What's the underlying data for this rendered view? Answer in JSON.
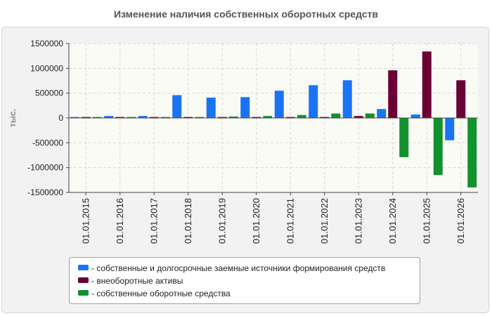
{
  "chart_data": {
    "type": "bar",
    "title": "Изменение наличия собственных оборотных средств",
    "ylabel": "тыс.",
    "xlabel": "",
    "ylim": [
      -1500000,
      1500000
    ],
    "yticks": [
      1500000,
      1000000,
      500000,
      0,
      -500000,
      -1000000,
      -1500000
    ],
    "ytick_labels": [
      "1500000",
      "1000000",
      "500000",
      "0",
      "-500000",
      "-1000000",
      "-1500000"
    ],
    "categories": [
      "01.01.2015",
      "01.01.2016",
      "01.01.2017",
      "01.01.2018",
      "01.01.2019",
      "01.01.2020",
      "01.01.2021",
      "01.01.2022",
      "01.01.2023",
      "01.01.2024",
      "01.01.2025",
      "01.01.2026"
    ],
    "series": [
      {
        "name": "- собственные и долгосрочные заемные источники формирования средств",
        "color": "#1a73f5",
        "values": [
          20000,
          40000,
          40000,
          460000,
          410000,
          420000,
          550000,
          660000,
          760000,
          180000,
          70000,
          -450000
        ]
      },
      {
        "name": "- внеоборотные активы",
        "color": "#6b0033",
        "values": [
          20000,
          20000,
          20000,
          20000,
          20000,
          20000,
          20000,
          20000,
          40000,
          960000,
          1340000,
          760000
        ]
      },
      {
        "name": "- собственные оборотные средства",
        "color": "#12922f",
        "values": [
          20000,
          20000,
          20000,
          20000,
          30000,
          40000,
          60000,
          90000,
          90000,
          -790000,
          -1150000,
          -1400000
        ]
      }
    ],
    "grid": true,
    "legend_position": "bottom"
  }
}
